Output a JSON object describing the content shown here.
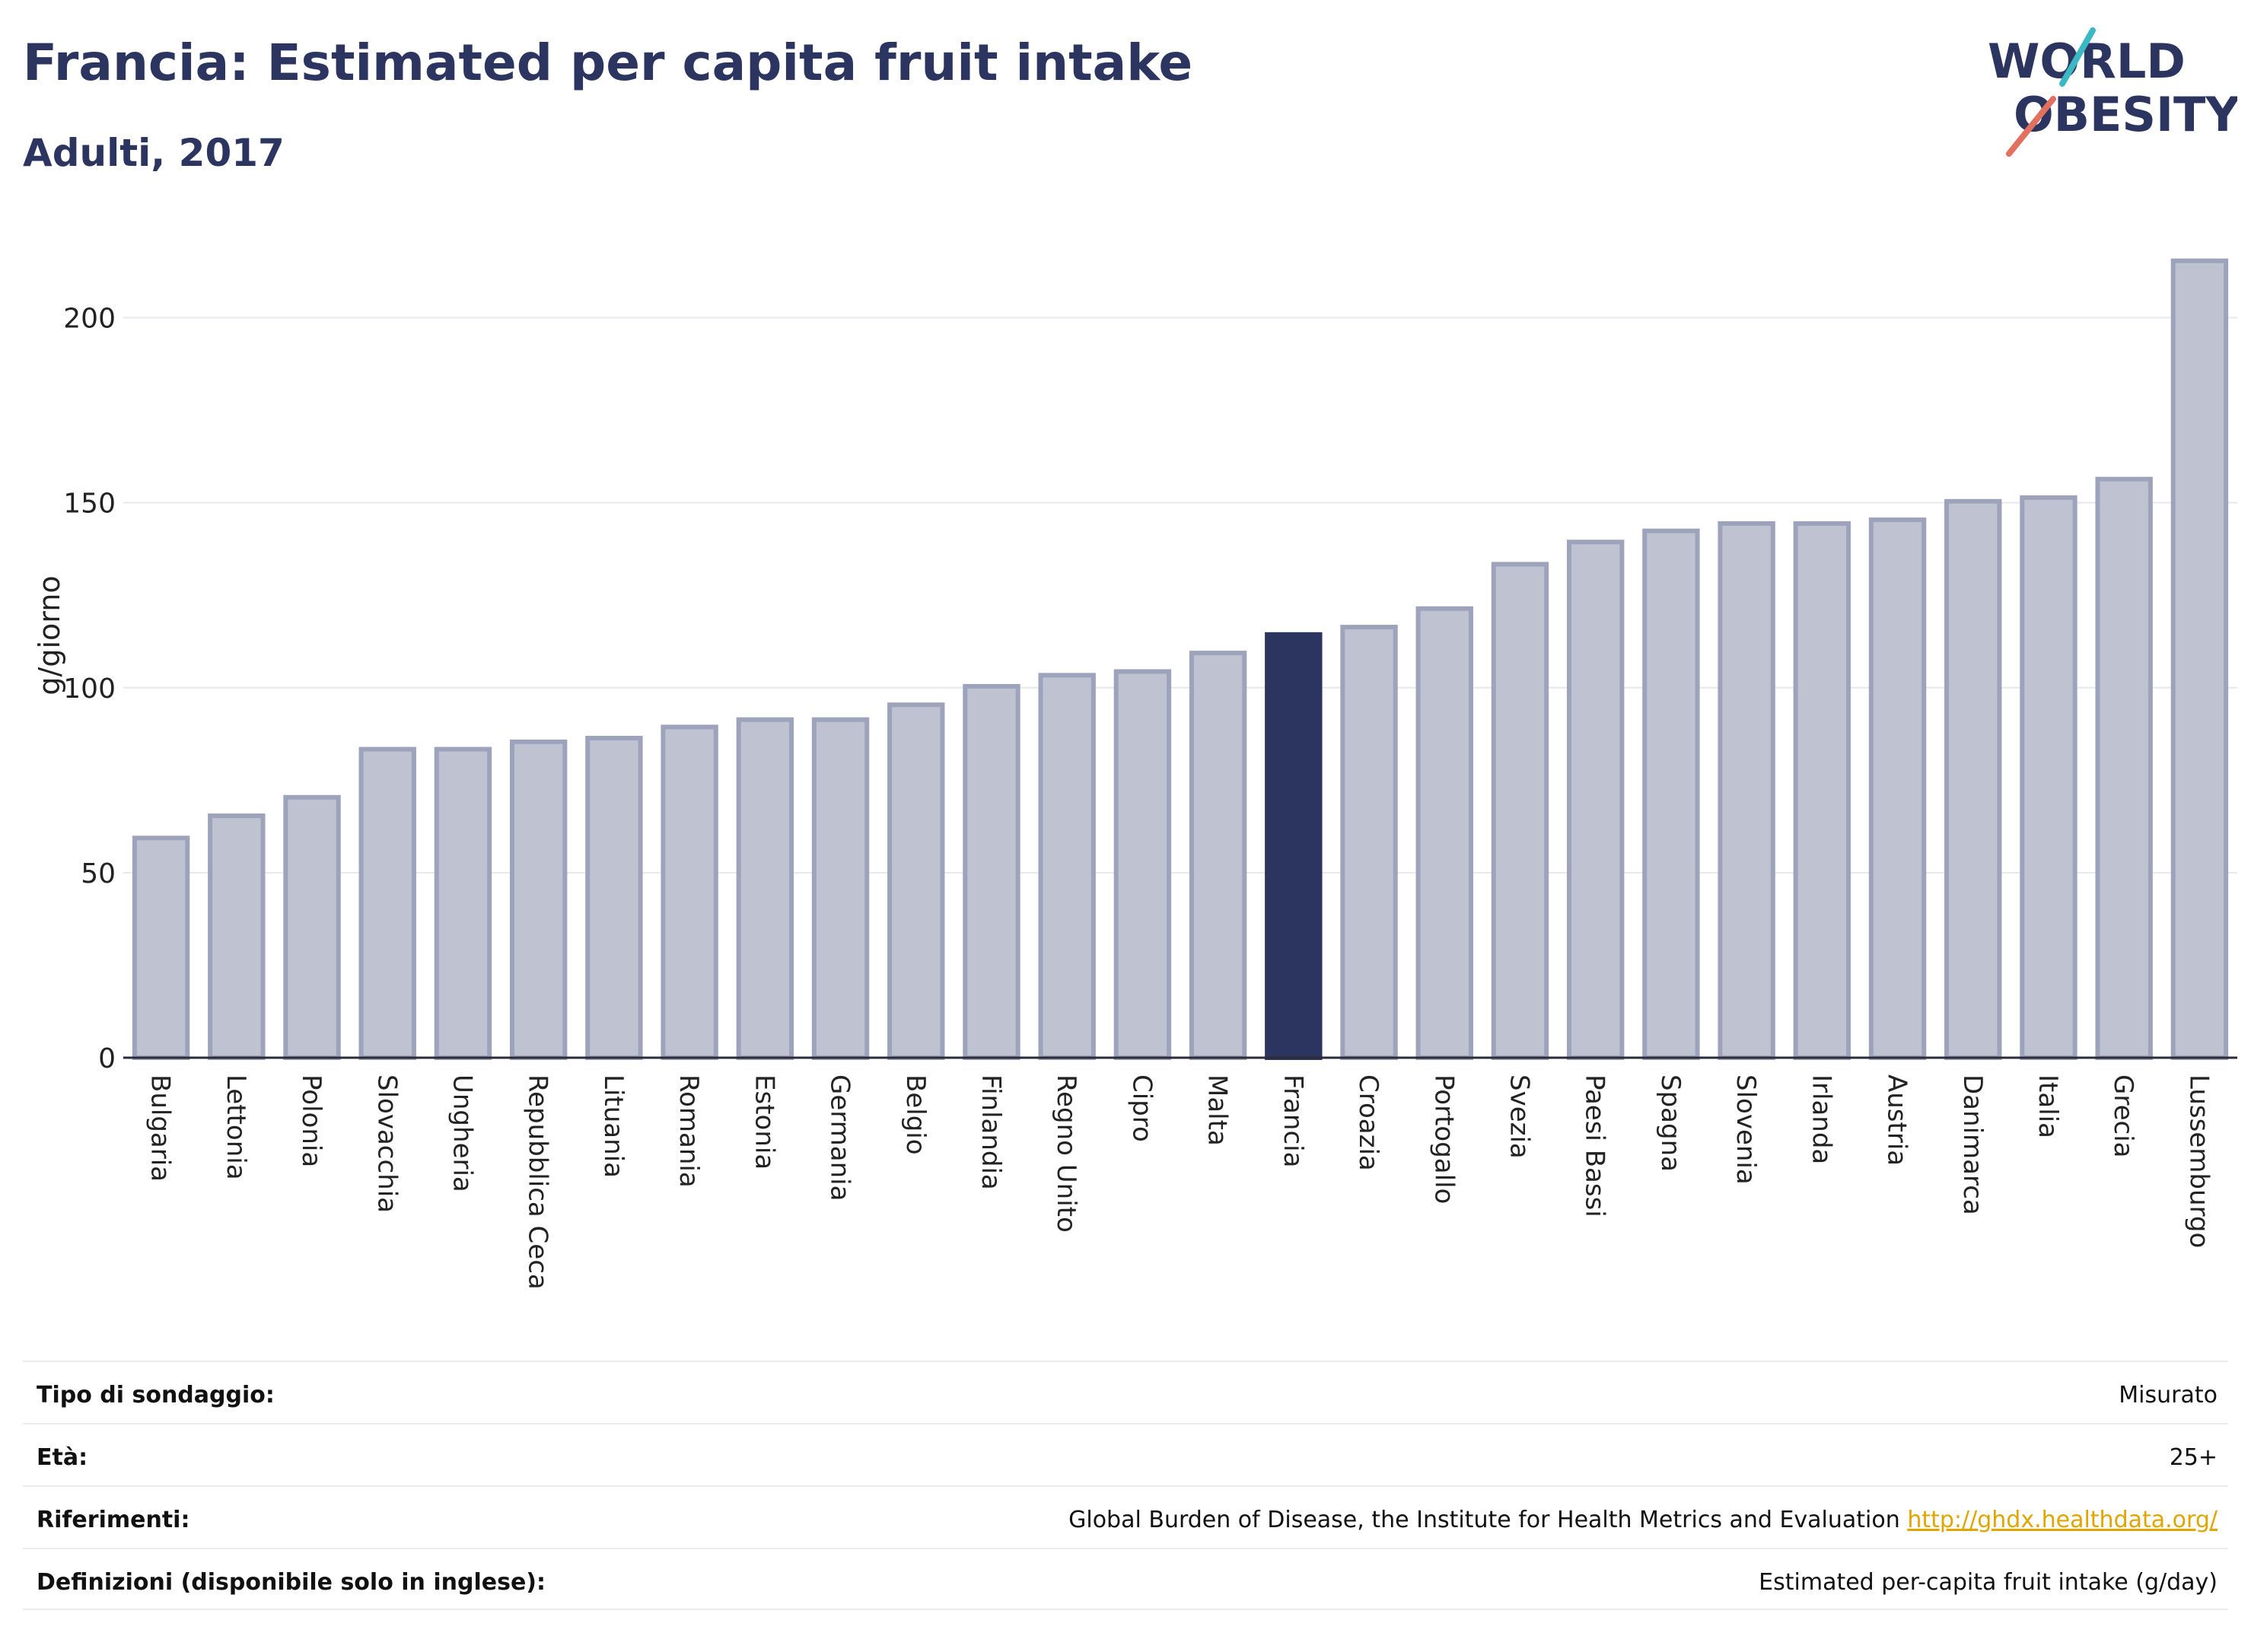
{
  "header": {
    "title": "Francia: Estimated per capita fruit intake",
    "subtitle": "Adulti, 2017"
  },
  "logo": {
    "line1": "WORLD",
    "line2": "OBESITY"
  },
  "colors": {
    "highlight": "#2b3560",
    "bar_fill": "#bfc2d0",
    "bar_stroke": "#9ea3bc",
    "text": "#2b3560",
    "link": "#e0a500"
  },
  "chart_data": {
    "type": "bar",
    "title": "Francia: Estimated per capita fruit intake",
    "subtitle": "Adulti, 2017",
    "ylabel": "g/giorno",
    "xlabel": "",
    "ylim": [
      0,
      218
    ],
    "yticks": [
      0,
      50,
      100,
      150,
      200
    ],
    "grid": true,
    "highlight": "Francia",
    "categories": [
      "Bulgaria",
      "Lettonia",
      "Polonia",
      "Slovacchia",
      "Ungheria",
      "Repubblica Ceca",
      "Lituania",
      "Romania",
      "Estonia",
      "Germania",
      "Belgio",
      "Finlandia",
      "Regno Unito",
      "Cipro",
      "Malta",
      "Francia",
      "Croazia",
      "Portogallo",
      "Svezia",
      "Paesi Bassi",
      "Spagna",
      "Slovenia",
      "Irlanda",
      "Austria",
      "Danimarca",
      "Italia",
      "Grecia",
      "Lussemburgo"
    ],
    "values": [
      60,
      66,
      71,
      84,
      84,
      86,
      87,
      90,
      92,
      92,
      96,
      101,
      104,
      105,
      110,
      115,
      117,
      122,
      134,
      140,
      143,
      145,
      145,
      146,
      151,
      152,
      157,
      216
    ]
  },
  "info": [
    {
      "label": "Tipo di sondaggio:",
      "value": "Misurato"
    },
    {
      "label": "Età:",
      "value": "25+"
    },
    {
      "label": "Riferimenti:",
      "value": "Global Burden of Disease, the Institute for Health Metrics and Evaluation",
      "link": "http://ghdx.healthdata.org/"
    },
    {
      "label": "Definizioni (disponibile solo in inglese):",
      "value": "Estimated per-capita fruit intake (g/day)"
    }
  ]
}
